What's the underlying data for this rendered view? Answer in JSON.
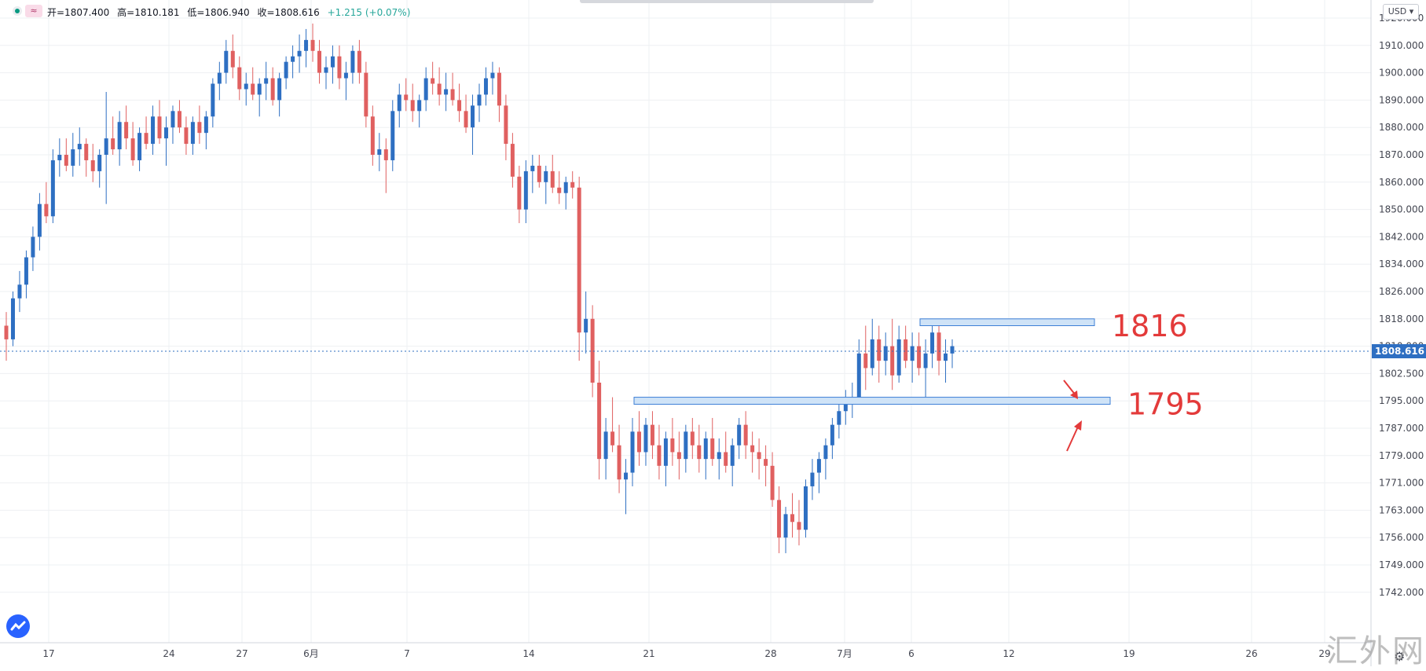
{
  "header": {
    "live_icon": "live-dot-icon",
    "compare_icon": "wave-icon",
    "compare_glyph": "≈",
    "open_text": "开=1807.400",
    "high_text": "高=1810.181",
    "low_text": "低=1806.940",
    "close_text": "收=1808.616",
    "change_text": "+1.215 (+0.07%)",
    "currency": "USD"
  },
  "colors": {
    "up": "#2e6fc2",
    "down": "#e06060",
    "zone_fill": "#cfe3f7",
    "zone_stroke": "#3d7fd6",
    "annotation": "#e33a3a",
    "price_line": "#2e6fc2",
    "grid": "#eef0f3",
    "axis_text": "#434651"
  },
  "chart_data": {
    "type": "candlestick",
    "y_axis": {
      "ticks": [
        1920.0,
        1910.0,
        1900.0,
        1890.0,
        1880.0,
        1870.0,
        1860.0,
        1850.0,
        1842.0,
        1834.0,
        1826.0,
        1818.0,
        1810.0,
        1802.5,
        1795.0,
        1787.0,
        1779.0,
        1771.0,
        1763.0,
        1756.0,
        1749.0,
        1742.0
      ],
      "tick_labels": [
        "1920.000",
        "1910.000",
        "1900.000",
        "1890.000",
        "1880.000",
        "1870.000",
        "1860.000",
        "1850.000",
        "1842.000",
        "1834.000",
        "1826.000",
        "1818.000",
        "1810.000",
        "1802.500",
        "1795.000",
        "1787.000",
        "1779.000",
        "1771.000",
        "1763.000",
        "1756.000",
        "1749.000",
        "1742.000"
      ],
      "current_price": 1808.616,
      "current_price_label": "1808.616"
    },
    "x_axis": {
      "labels": [
        "17",
        "24",
        "27",
        "6月",
        "7",
        "14",
        "21",
        "28",
        "7月",
        "6",
        "12",
        "19",
        "26",
        "29"
      ]
    },
    "candles": [
      [
        1816,
        1820,
        1806,
        1812
      ],
      [
        1812,
        1826,
        1810,
        1824
      ],
      [
        1824,
        1832,
        1820,
        1828
      ],
      [
        1828,
        1838,
        1824,
        1836
      ],
      [
        1836,
        1845,
        1832,
        1842
      ],
      [
        1842,
        1856,
        1838,
        1852
      ],
      [
        1852,
        1860,
        1846,
        1848
      ],
      [
        1848,
        1872,
        1846,
        1868
      ],
      [
        1868,
        1876,
        1862,
        1870
      ],
      [
        1870,
        1876,
        1864,
        1866
      ],
      [
        1866,
        1878,
        1862,
        1872
      ],
      [
        1872,
        1880,
        1866,
        1874
      ],
      [
        1874,
        1876,
        1862,
        1868
      ],
      [
        1868,
        1874,
        1860,
        1864
      ],
      [
        1864,
        1872,
        1858,
        1870
      ],
      [
        1870,
        1893,
        1852,
        1876
      ],
      [
        1876,
        1884,
        1870,
        1872
      ],
      [
        1872,
        1886,
        1866,
        1882
      ],
      [
        1882,
        1888,
        1872,
        1876
      ],
      [
        1876,
        1882,
        1866,
        1868
      ],
      [
        1868,
        1880,
        1864,
        1878
      ],
      [
        1878,
        1884,
        1872,
        1874
      ],
      [
        1874,
        1888,
        1870,
        1884
      ],
      [
        1884,
        1890,
        1874,
        1876
      ],
      [
        1876,
        1884,
        1866,
        1880
      ],
      [
        1880,
        1888,
        1874,
        1886
      ],
      [
        1886,
        1890,
        1878,
        1880
      ],
      [
        1880,
        1884,
        1870,
        1874
      ],
      [
        1874,
        1884,
        1870,
        1882
      ],
      [
        1882,
        1888,
        1874,
        1878
      ],
      [
        1878,
        1886,
        1872,
        1884
      ],
      [
        1884,
        1898,
        1880,
        1896
      ],
      [
        1896,
        1904,
        1890,
        1900
      ],
      [
        1900,
        1912,
        1896,
        1908
      ],
      [
        1908,
        1914,
        1898,
        1902
      ],
      [
        1902,
        1906,
        1890,
        1894
      ],
      [
        1894,
        1900,
        1888,
        1896
      ],
      [
        1896,
        1902,
        1890,
        1892
      ],
      [
        1892,
        1898,
        1884,
        1896
      ],
      [
        1896,
        1904,
        1890,
        1898
      ],
      [
        1898,
        1902,
        1888,
        1890
      ],
      [
        1890,
        1900,
        1884,
        1898
      ],
      [
        1898,
        1906,
        1894,
        1904
      ],
      [
        1904,
        1910,
        1898,
        1906
      ],
      [
        1906,
        1914,
        1900,
        1908
      ],
      [
        1908,
        1916,
        1902,
        1912
      ],
      [
        1912,
        1918,
        1904,
        1908
      ],
      [
        1908,
        1912,
        1896,
        1900
      ],
      [
        1900,
        1906,
        1894,
        1902
      ],
      [
        1902,
        1910,
        1896,
        1906
      ],
      [
        1906,
        1910,
        1894,
        1898
      ],
      [
        1898,
        1904,
        1890,
        1900
      ],
      [
        1900,
        1910,
        1896,
        1908
      ],
      [
        1908,
        1912,
        1896,
        1900
      ],
      [
        1900,
        1904,
        1880,
        1884
      ],
      [
        1884,
        1888,
        1866,
        1870
      ],
      [
        1870,
        1878,
        1864,
        1872
      ],
      [
        1872,
        1876,
        1856,
        1868
      ],
      [
        1868,
        1890,
        1864,
        1886
      ],
      [
        1886,
        1896,
        1880,
        1892
      ],
      [
        1892,
        1898,
        1886,
        1890
      ],
      [
        1890,
        1896,
        1882,
        1886
      ],
      [
        1886,
        1892,
        1880,
        1890
      ],
      [
        1890,
        1902,
        1886,
        1898
      ],
      [
        1898,
        1904,
        1892,
        1896
      ],
      [
        1896,
        1902,
        1888,
        1892
      ],
      [
        1892,
        1900,
        1886,
        1894
      ],
      [
        1894,
        1900,
        1888,
        1890
      ],
      [
        1890,
        1896,
        1882,
        1886
      ],
      [
        1886,
        1892,
        1878,
        1880
      ],
      [
        1880,
        1892,
        1870,
        1888
      ],
      [
        1888,
        1896,
        1882,
        1892
      ],
      [
        1892,
        1902,
        1888,
        1898
      ],
      [
        1898,
        1904,
        1892,
        1900
      ],
      [
        1900,
        1902,
        1882,
        1888
      ],
      [
        1888,
        1892,
        1868,
        1874
      ],
      [
        1874,
        1878,
        1858,
        1862
      ],
      [
        1862,
        1866,
        1846,
        1850
      ],
      [
        1850,
        1868,
        1846,
        1864
      ],
      [
        1864,
        1870,
        1856,
        1866
      ],
      [
        1866,
        1870,
        1858,
        1860
      ],
      [
        1860,
        1866,
        1852,
        1864
      ],
      [
        1864,
        1870,
        1856,
        1858
      ],
      [
        1858,
        1864,
        1852,
        1856
      ],
      [
        1856,
        1862,
        1850,
        1860
      ],
      [
        1860,
        1864,
        1854,
        1858
      ],
      [
        1858,
        1862,
        1806,
        1814
      ],
      [
        1814,
        1826,
        1808,
        1818
      ],
      [
        1818,
        1822,
        1796,
        1800
      ],
      [
        1800,
        1806,
        1772,
        1778
      ],
      [
        1778,
        1790,
        1772,
        1786
      ],
      [
        1786,
        1796,
        1780,
        1782
      ],
      [
        1782,
        1788,
        1768,
        1772
      ],
      [
        1772,
        1778,
        1762,
        1774
      ],
      [
        1774,
        1790,
        1770,
        1786
      ],
      [
        1786,
        1792,
        1776,
        1780
      ],
      [
        1780,
        1790,
        1776,
        1788
      ],
      [
        1788,
        1792,
        1778,
        1782
      ],
      [
        1782,
        1788,
        1772,
        1776
      ],
      [
        1776,
        1786,
        1770,
        1784
      ],
      [
        1784,
        1790,
        1776,
        1780
      ],
      [
        1780,
        1786,
        1772,
        1778
      ],
      [
        1778,
        1788,
        1774,
        1786
      ],
      [
        1786,
        1790,
        1778,
        1782
      ],
      [
        1782,
        1788,
        1774,
        1778
      ],
      [
        1778,
        1786,
        1772,
        1784
      ],
      [
        1784,
        1790,
        1776,
        1778
      ],
      [
        1778,
        1784,
        1772,
        1780
      ],
      [
        1780,
        1786,
        1774,
        1776
      ],
      [
        1776,
        1784,
        1770,
        1782
      ],
      [
        1782,
        1790,
        1778,
        1788
      ],
      [
        1788,
        1792,
        1778,
        1782
      ],
      [
        1782,
        1786,
        1774,
        1780
      ],
      [
        1780,
        1784,
        1772,
        1778
      ],
      [
        1778,
        1782,
        1770,
        1776
      ],
      [
        1776,
        1780,
        1764,
        1766
      ],
      [
        1766,
        1770,
        1752,
        1756
      ],
      [
        1756,
        1764,
        1752,
        1762
      ],
      [
        1762,
        1768,
        1756,
        1760
      ],
      [
        1760,
        1766,
        1754,
        1758
      ],
      [
        1758,
        1772,
        1756,
        1770
      ],
      [
        1770,
        1778,
        1766,
        1774
      ],
      [
        1774,
        1780,
        1768,
        1778
      ],
      [
        1778,
        1784,
        1772,
        1782
      ],
      [
        1782,
        1790,
        1778,
        1788
      ],
      [
        1788,
        1794,
        1784,
        1792
      ],
      [
        1792,
        1798,
        1788,
        1794
      ],
      [
        1794,
        1800,
        1790,
        1796
      ],
      [
        1796,
        1812,
        1794,
        1808
      ],
      [
        1808,
        1816,
        1798,
        1804
      ],
      [
        1804,
        1818,
        1802,
        1812
      ],
      [
        1812,
        1816,
        1800,
        1806
      ],
      [
        1806,
        1814,
        1802,
        1810
      ],
      [
        1810,
        1818,
        1798,
        1802
      ],
      [
        1802,
        1816,
        1800,
        1812
      ],
      [
        1812,
        1816,
        1804,
        1806
      ],
      [
        1806,
        1814,
        1800,
        1810
      ],
      [
        1810,
        1814,
        1802,
        1804
      ],
      [
        1804,
        1812,
        1796,
        1808
      ],
      [
        1808,
        1818,
        1804,
        1814
      ],
      [
        1814,
        1818,
        1802,
        1806
      ],
      [
        1806,
        1812,
        1800,
        1808
      ],
      [
        1808,
        1812,
        1804,
        1810
      ]
    ],
    "zones": [
      {
        "top": 1818,
        "bottom": 1816,
        "label": "1816"
      },
      {
        "top": 1796,
        "bottom": 1794,
        "label": "1795"
      }
    ],
    "watermark": "汇外网"
  }
}
